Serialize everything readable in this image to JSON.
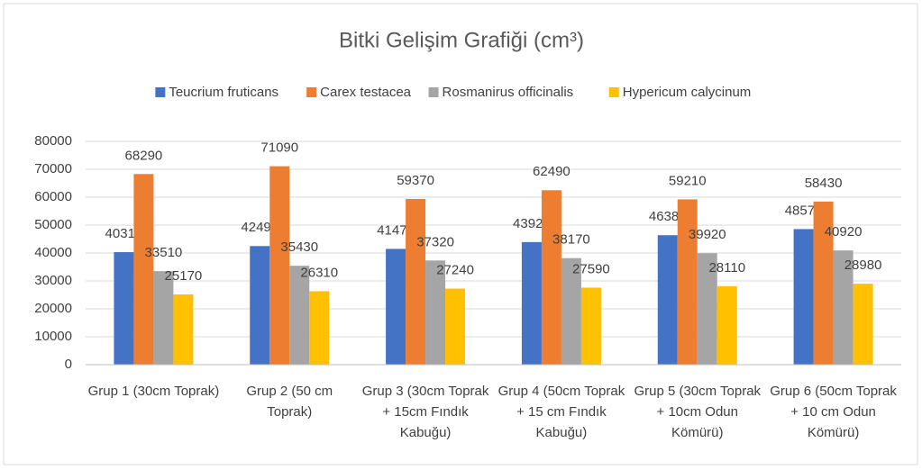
{
  "chart_data": {
    "type": "bar",
    "title": "Bitki Gelişim Grafiği (cm³)",
    "categories": [
      "Grup 1 (30cm Toprak)",
      "Grup 2 (50 cm Toprak)",
      "Grup 3 (30cm Toprak + 15cm Fındık Kabuğu)",
      "Grup 4 (50cm Toprak + 15 cm Fındık Kabuğu)",
      "Grup 5 (30cm Toprak + 10cm Odun Kömürü)",
      "Grup 6 (50cm Toprak + 10 cm Odun Kömürü)"
    ],
    "series": [
      {
        "name": "Teucrium fruticans",
        "color": "#4472c4",
        "values": [
          40310,
          42490,
          41470,
          43920,
          46380,
          48570
        ]
      },
      {
        "name": "Carex testacea",
        "color": "#ed7d31",
        "values": [
          68290,
          71090,
          59370,
          62490,
          59210,
          58430
        ]
      },
      {
        "name": "Rosmanirus officinalis",
        "color": "#a5a5a5",
        "values": [
          33510,
          35430,
          37320,
          38170,
          39920,
          40920
        ]
      },
      {
        "name": "Hypericum calycinum",
        "color": "#ffc000",
        "values": [
          25170,
          26310,
          27240,
          27590,
          28110,
          28980
        ]
      }
    ],
    "ylim": [
      0,
      80000
    ],
    "yticks": [
      0,
      10000,
      20000,
      30000,
      40000,
      50000,
      60000,
      70000,
      80000
    ],
    "grid": true,
    "legend": "top"
  }
}
